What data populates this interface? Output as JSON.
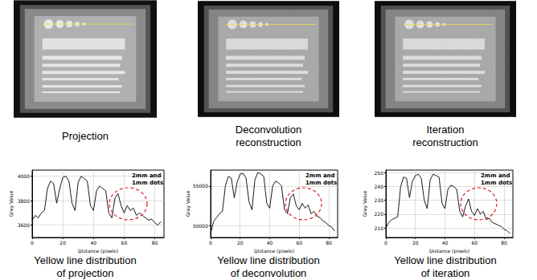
{
  "images": [
    {
      "caption": "Projection"
    },
    {
      "caption": "Deconvolution\nreconstruction"
    },
    {
      "caption": "Iteration\nreconstruction"
    }
  ],
  "chart_data": [
    {
      "type": "line",
      "title": "Yellow line distribution\nof projection",
      "xlabel": "Distance (pixels)",
      "ylabel": "Gray Value",
      "annotation": "2mm and\n1mm dots",
      "x": [
        0,
        2,
        4,
        6,
        8,
        10,
        12,
        14,
        16,
        18,
        20,
        22,
        24,
        26,
        28,
        30,
        32,
        34,
        36,
        38,
        40,
        42,
        44,
        46,
        48,
        50,
        52,
        54,
        56,
        58,
        60,
        62,
        64,
        66,
        68,
        70,
        72,
        74,
        76,
        78,
        80,
        82,
        84
      ],
      "values": [
        3640,
        3680,
        3660,
        3700,
        3720,
        3900,
        3960,
        3940,
        3780,
        3900,
        3990,
        4000,
        3960,
        3780,
        3720,
        3950,
        4000,
        3980,
        3960,
        3760,
        3720,
        3880,
        3920,
        3900,
        3880,
        3700,
        3660,
        3820,
        3860,
        3760,
        3700,
        3760,
        3720,
        3740,
        3680,
        3700,
        3680,
        3660,
        3640,
        3650,
        3620,
        3600,
        3630
      ],
      "color": "#000000",
      "xlim": [
        0,
        86
      ],
      "xticks": [
        0,
        20,
        40,
        60,
        80
      ],
      "ylim": [
        3500,
        4050
      ],
      "yticks": [
        3600,
        3800,
        4000
      ],
      "grid": true
    },
    {
      "type": "line",
      "title": "Yellow line distribution\nof deconvolution",
      "xlabel": "Distance (pixels)",
      "ylabel": "Gray Value",
      "annotation": "2mm and\n1mm dots",
      "x": [
        0,
        2,
        4,
        6,
        8,
        10,
        12,
        14,
        16,
        18,
        20,
        22,
        24,
        26,
        28,
        30,
        32,
        34,
        36,
        38,
        40,
        42,
        44,
        46,
        48,
        50,
        52,
        54,
        56,
        58,
        60,
        62,
        64,
        66,
        68,
        70,
        72,
        74,
        76,
        78,
        80,
        82,
        84
      ],
      "values": [
        49000,
        50500,
        51000,
        51500,
        51800,
        55000,
        56200,
        56000,
        53500,
        55500,
        56500,
        56600,
        56000,
        53000,
        52000,
        55800,
        56700,
        56500,
        56200,
        52800,
        52200,
        55000,
        55600,
        55400,
        55000,
        52000,
        51500,
        53500,
        54000,
        52500,
        52000,
        52800,
        52200,
        52600,
        51500,
        51800,
        51200,
        51000,
        50600,
        50400,
        50000,
        49800,
        49300
      ],
      "color": "#000000",
      "xlim": [
        0,
        86
      ],
      "xticks": [
        0,
        20,
        40,
        60,
        80
      ],
      "ylim": [
        48500,
        57000
      ],
      "yticks": [
        50000,
        55000
      ],
      "grid": true
    },
    {
      "type": "line",
      "title": "Yellow line distribution\nof iteration",
      "xlabel": "Distance (pixels)",
      "ylabel": "Gray Value",
      "annotation": "2mm and\n1mm dots",
      "x": [
        0,
        2,
        4,
        6,
        8,
        10,
        12,
        14,
        16,
        18,
        20,
        22,
        24,
        26,
        28,
        30,
        32,
        34,
        36,
        38,
        40,
        42,
        44,
        46,
        48,
        50,
        52,
        54,
        56,
        58,
        60,
        62,
        64,
        66,
        68,
        70,
        72,
        74,
        76,
        78,
        80,
        82,
        84
      ],
      "values": [
        210,
        214,
        216,
        217,
        218,
        240,
        247,
        246,
        232,
        244,
        248,
        249,
        246,
        230,
        224,
        245,
        249,
        248,
        247,
        228,
        224,
        238,
        241,
        240,
        238,
        222,
        218,
        226,
        231,
        222,
        219,
        224,
        220,
        222,
        216,
        217,
        214,
        213,
        212,
        211,
        209,
        208,
        206
      ],
      "color": "#000000",
      "xlim": [
        0,
        86
      ],
      "xticks": [
        0,
        20,
        40,
        60,
        80
      ],
      "ylim": [
        203,
        252
      ],
      "yticks": [
        210,
        220,
        230,
        240,
        250
      ],
      "grid": true
    }
  ]
}
